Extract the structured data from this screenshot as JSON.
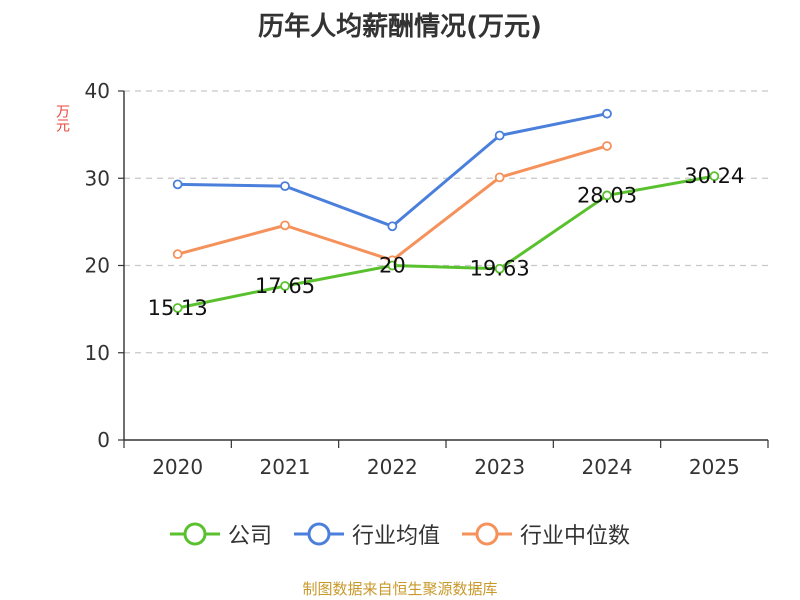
{
  "chart_data": {
    "type": "line",
    "title": "历年人均薪酬情况(万元)",
    "ylabel": "万元",
    "xlabel": "",
    "ylim": [
      0,
      40
    ],
    "yticks": [
      0,
      10,
      20,
      30,
      40
    ],
    "categories": [
      "2020",
      "2021",
      "2022",
      "2023",
      "2024",
      "2025"
    ],
    "grid": true,
    "legend_position": "bottom",
    "series": [
      {
        "name": "公司",
        "color": "#5ac12e",
        "values": [
          15.13,
          17.65,
          20,
          19.63,
          28.03,
          30.24
        ],
        "labels": [
          "15.13",
          "17.65",
          "20",
          "19.63",
          "28.03",
          "30.24"
        ]
      },
      {
        "name": "行业均值",
        "color": "#4a7fdb",
        "values": [
          29.3,
          29.1,
          24.5,
          34.9,
          37.4,
          null
        ]
      },
      {
        "name": "行业中位数",
        "color": "#f5915a",
        "values": [
          21.3,
          24.6,
          20.6,
          30.1,
          33.7,
          null
        ]
      }
    ]
  },
  "source": "制图数据来自恒生聚源数据库"
}
